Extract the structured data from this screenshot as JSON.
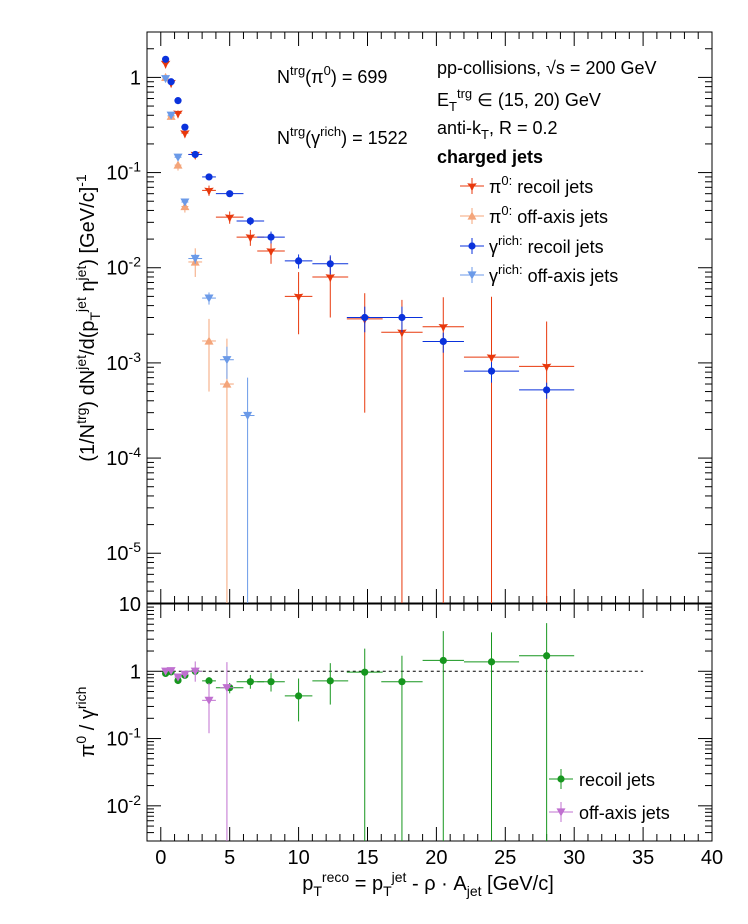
{
  "colors": {
    "pi0_recoil": "#e8380c",
    "pi0_offaxis": "#f4a57a",
    "gamma_recoil": "#0a32dc",
    "gamma_offaxis": "#6b9ae8",
    "ratio_recoil": "#16961e",
    "ratio_offaxis": "#c070d0"
  },
  "text": {
    "ntrg_pi0": "N^trg(π^0) = 699",
    "ntrg_gamma": "N^trg(γ^rich) = 1522",
    "system": "pp-collisions, √s = 200 GeV",
    "etrg": "E_T^trg ∈ (15, 20) GeV",
    "algo": "anti-k_T, R = 0.2",
    "jets": "charged jets",
    "top_ylabel": "(1/N^trg) dN^jet/d(p_T^jet η^jet) [GeV/c]^-1",
    "bottom_ylabel": "π^0 / γ^rich",
    "xlabel": "p_T^reco = p_T^jet - ρ · A_jet [GeV/c]"
  },
  "chart_data": [
    {
      "type": "scatter",
      "panel": "top",
      "ylog": true,
      "ylim": [
        3e-06,
        3
      ],
      "xlim": [
        -1,
        40
      ],
      "ytick_labels": [
        "1",
        "10^-1",
        "10^-2",
        "10^-3",
        "10^-4",
        "10^-5"
      ],
      "legend_placement": "top-right",
      "series": [
        {
          "key": "pi0_recoil",
          "name": "π^0: recoil jets",
          "marker": "down-star",
          "points": [
            {
              "x": 0.35,
              "y": 1.4,
              "xerr": 0.15,
              "yerr": [
                0.05,
                0.05
              ]
            },
            {
              "x": 0.75,
              "y": 0.88,
              "xerr": 0.25,
              "yerr": [
                0.04,
                0.04
              ]
            },
            {
              "x": 1.25,
              "y": 0.42,
              "xerr": 0.25,
              "yerr": [
                0.03,
                0.03
              ]
            },
            {
              "x": 1.75,
              "y": 0.26,
              "xerr": 0.25,
              "yerr": [
                0.02,
                0.02
              ]
            },
            {
              "x": 2.5,
              "y": 0.155,
              "xerr": 0.5,
              "yerr": [
                0.01,
                0.01
              ]
            },
            {
              "x": 3.5,
              "y": 0.065,
              "xerr": 0.5,
              "yerr": [
                0.008,
                0.008
              ]
            },
            {
              "x": 5.0,
              "y": 0.034,
              "xerr": 1.0,
              "yerr": [
                0.005,
                0.005
              ]
            },
            {
              "x": 6.5,
              "y": 0.021,
              "xerr": 1.0,
              "yerr": [
                0.004,
                0.004
              ]
            },
            {
              "x": 8.0,
              "y": 0.015,
              "xerr": 1.0,
              "yerr": [
                0.004,
                0.004
              ]
            },
            {
              "x": 10.0,
              "y": 0.005,
              "xerr": 1.0,
              "yerr": [
                0.003,
                0.004
              ]
            },
            {
              "x": 12.3,
              "y": 0.008,
              "xerr": 1.3,
              "yerr": [
                0.005,
                0.005
              ]
            },
            {
              "x": 14.8,
              "y": 0.0029,
              "xerr": 1.3,
              "yerr": [
                0.0026,
                0.0025
              ]
            },
            {
              "x": 17.5,
              "y": 0.0021,
              "xerr": 1.5,
              "yerr": [
                0.0021,
                0.0025
              ]
            },
            {
              "x": 20.5,
              "y": 0.0024,
              "xerr": 1.5,
              "yerr": [
                0.0024,
                0.0025
              ]
            },
            {
              "x": 24.0,
              "y": 0.00115,
              "xerr": 2.0,
              "yerr": [
                0.00115,
                0.0038
              ]
            },
            {
              "x": 28.0,
              "y": 0.00092,
              "xerr": 2.0,
              "yerr": [
                0.00092,
                0.0018
              ]
            }
          ]
        },
        {
          "key": "pi0_offaxis",
          "name": "π^0: off-axis jets",
          "marker": "up-triangle",
          "points": [
            {
              "x": 0.35,
              "y": 1.0,
              "xerr": 0.15,
              "yerr": [
                0.05,
                0.05
              ]
            },
            {
              "x": 0.75,
              "y": 0.39,
              "xerr": 0.25,
              "yerr": [
                0.03,
                0.03
              ]
            },
            {
              "x": 1.25,
              "y": 0.12,
              "xerr": 0.25,
              "yerr": [
                0.015,
                0.015
              ]
            },
            {
              "x": 1.75,
              "y": 0.044,
              "xerr": 0.25,
              "yerr": [
                0.006,
                0.006
              ]
            },
            {
              "x": 2.5,
              "y": 0.0115,
              "xerr": 0.5,
              "yerr": [
                0.0035,
                0.0045
              ]
            },
            {
              "x": 3.5,
              "y": 0.0017,
              "xerr": 0.5,
              "yerr": [
                0.0012,
                0.0012
              ]
            },
            {
              "x": 4.8,
              "y": 0.0006,
              "xerr": 0.5,
              "yerr": [
                0.0006,
                0.0012
              ]
            }
          ]
        },
        {
          "key": "gamma_recoil",
          "name": "γ^rich: recoil jets",
          "marker": "circle",
          "points": [
            {
              "x": 0.35,
              "y": 1.55,
              "xerr": 0.15,
              "yerr": [
                0.05,
                0.05
              ]
            },
            {
              "x": 0.75,
              "y": 0.9,
              "xerr": 0.25,
              "yerr": [
                0.04,
                0.04
              ]
            },
            {
              "x": 1.25,
              "y": 0.57,
              "xerr": 0.25,
              "yerr": [
                0.03,
                0.03
              ]
            },
            {
              "x": 1.75,
              "y": 0.3,
              "xerr": 0.25,
              "yerr": [
                0.02,
                0.02
              ]
            },
            {
              "x": 2.5,
              "y": 0.155,
              "xerr": 0.5,
              "yerr": [
                0.01,
                0.01
              ]
            },
            {
              "x": 3.5,
              "y": 0.09,
              "xerr": 0.5,
              "yerr": [
                0.006,
                0.006
              ]
            },
            {
              "x": 5.0,
              "y": 0.06,
              "xerr": 1.0,
              "yerr": [
                0.004,
                0.004
              ]
            },
            {
              "x": 6.5,
              "y": 0.031,
              "xerr": 1.0,
              "yerr": [
                0.003,
                0.003
              ]
            },
            {
              "x": 8.0,
              "y": 0.021,
              "xerr": 1.0,
              "yerr": [
                0.003,
                0.003
              ]
            },
            {
              "x": 10.0,
              "y": 0.0118,
              "xerr": 1.0,
              "yerr": [
                0.002,
                0.002
              ]
            },
            {
              "x": 12.3,
              "y": 0.011,
              "xerr": 1.3,
              "yerr": [
                0.0025,
                0.0025
              ]
            },
            {
              "x": 14.8,
              "y": 0.003,
              "xerr": 1.3,
              "yerr": [
                0.0009,
                0.0009
              ]
            },
            {
              "x": 17.5,
              "y": 0.003,
              "xerr": 1.5,
              "yerr": [
                0.0009,
                0.0009
              ]
            },
            {
              "x": 20.5,
              "y": 0.00168,
              "xerr": 1.5,
              "yerr": [
                0.0004,
                0.0004
              ]
            },
            {
              "x": 24.0,
              "y": 0.00082,
              "xerr": 2.0,
              "yerr": [
                0.0002,
                0.0002
              ]
            },
            {
              "x": 28.0,
              "y": 0.00052,
              "xerr": 2.0,
              "yerr": [
                0.0001,
                0.0001
              ]
            }
          ]
        },
        {
          "key": "gamma_offaxis",
          "name": "γ^rich: off-axis jets",
          "marker": "down-triangle",
          "points": [
            {
              "x": 0.35,
              "y": 0.97,
              "xerr": 0.15,
              "yerr": [
                0.05,
                0.05
              ]
            },
            {
              "x": 0.75,
              "y": 0.4,
              "xerr": 0.25,
              "yerr": [
                0.03,
                0.03
              ]
            },
            {
              "x": 1.25,
              "y": 0.145,
              "xerr": 0.25,
              "yerr": [
                0.012,
                0.012
              ]
            },
            {
              "x": 1.75,
              "y": 0.049,
              "xerr": 0.25,
              "yerr": [
                0.004,
                0.004
              ]
            },
            {
              "x": 2.5,
              "y": 0.0125,
              "xerr": 0.5,
              "yerr": [
                0.0015,
                0.0015
              ]
            },
            {
              "x": 3.5,
              "y": 0.0048,
              "xerr": 0.5,
              "yerr": [
                0.0007,
                0.0007
              ]
            },
            {
              "x": 4.8,
              "y": 0.00108,
              "xerr": 0.5,
              "yerr": [
                0.0004,
                0.0004
              ]
            },
            {
              "x": 6.3,
              "y": 0.00028,
              "xerr": 0.5,
              "yerr": [
                0.00028,
                0.00042
              ]
            }
          ]
        }
      ]
    },
    {
      "type": "scatter",
      "panel": "bottom",
      "ylog": true,
      "ylim": [
        0.003,
        10
      ],
      "xlim": [
        -1,
        40
      ],
      "ytick_labels": [
        "10",
        "1",
        "10^-1",
        "10^-2"
      ],
      "xticks": [
        0,
        5,
        10,
        15,
        20,
        25,
        30,
        35,
        40
      ],
      "reference_line": {
        "y": 1,
        "x_from": 0,
        "x_to": 35,
        "style": "dashed"
      },
      "legend_placement": "bottom-right",
      "series": [
        {
          "key": "ratio_recoil",
          "name": "recoil jets",
          "marker": "circle",
          "points": [
            {
              "x": 0.35,
              "y": 0.93,
              "xerr": 0.15,
              "yerr": [
                0.05,
                0.05
              ]
            },
            {
              "x": 0.75,
              "y": 0.98,
              "xerr": 0.25,
              "yerr": [
                0.05,
                0.05
              ]
            },
            {
              "x": 1.25,
              "y": 0.73,
              "xerr": 0.25,
              "yerr": [
                0.06,
                0.06
              ]
            },
            {
              "x": 1.75,
              "y": 0.87,
              "xerr": 0.25,
              "yerr": [
                0.06,
                0.06
              ]
            },
            {
              "x": 2.5,
              "y": 1.0,
              "xerr": 0.5,
              "yerr": [
                0.08,
                0.08
              ]
            },
            {
              "x": 3.5,
              "y": 0.72,
              "xerr": 0.5,
              "yerr": [
                0.1,
                0.1
              ]
            },
            {
              "x": 5.0,
              "y": 0.57,
              "xerr": 1.0,
              "yerr": [
                0.1,
                0.1
              ]
            },
            {
              "x": 6.5,
              "y": 0.7,
              "xerr": 1.0,
              "yerr": [
                0.15,
                0.18
              ]
            },
            {
              "x": 8.0,
              "y": 0.7,
              "xerr": 1.0,
              "yerr": [
                0.2,
                0.25
              ]
            },
            {
              "x": 10.0,
              "y": 0.43,
              "xerr": 1.0,
              "yerr": [
                0.25,
                0.35
              ]
            },
            {
              "x": 12.3,
              "y": 0.72,
              "xerr": 1.3,
              "yerr": [
                0.4,
                0.6
              ]
            },
            {
              "x": 14.8,
              "y": 0.97,
              "xerr": 1.3,
              "yerr": [
                0.97,
                1.2
              ]
            },
            {
              "x": 17.5,
              "y": 0.7,
              "xerr": 1.5,
              "yerr": [
                0.7,
                1.0
              ]
            },
            {
              "x": 20.5,
              "y": 1.45,
              "xerr": 1.5,
              "yerr": [
                1.45,
                2.5
              ]
            },
            {
              "x": 24.0,
              "y": 1.38,
              "xerr": 2.0,
              "yerr": [
                1.38,
                2.4
              ]
            },
            {
              "x": 28.0,
              "y": 1.7,
              "xerr": 2.0,
              "yerr": [
                1.7,
                3.5
              ]
            }
          ]
        },
        {
          "key": "ratio_offaxis",
          "name": "off-axis jets",
          "marker": "down-triangle",
          "points": [
            {
              "x": 0.35,
              "y": 1.0,
              "xerr": 0.15,
              "yerr": [
                0.06,
                0.06
              ]
            },
            {
              "x": 0.75,
              "y": 1.02,
              "xerr": 0.25,
              "yerr": [
                0.07,
                0.07
              ]
            },
            {
              "x": 1.25,
              "y": 0.82,
              "xerr": 0.25,
              "yerr": [
                0.1,
                0.1
              ]
            },
            {
              "x": 1.75,
              "y": 0.9,
              "xerr": 0.25,
              "yerr": [
                0.12,
                0.12
              ]
            },
            {
              "x": 2.5,
              "y": 1.0,
              "xerr": 0.5,
              "yerr": [
                0.3,
                0.4
              ]
            },
            {
              "x": 3.5,
              "y": 0.37,
              "xerr": 0.5,
              "yerr": [
                0.25,
                0.3
              ]
            },
            {
              "x": 4.8,
              "y": 0.57,
              "xerr": 0.5,
              "yerr": [
                0.57,
                0.8
              ]
            }
          ]
        }
      ]
    }
  ]
}
